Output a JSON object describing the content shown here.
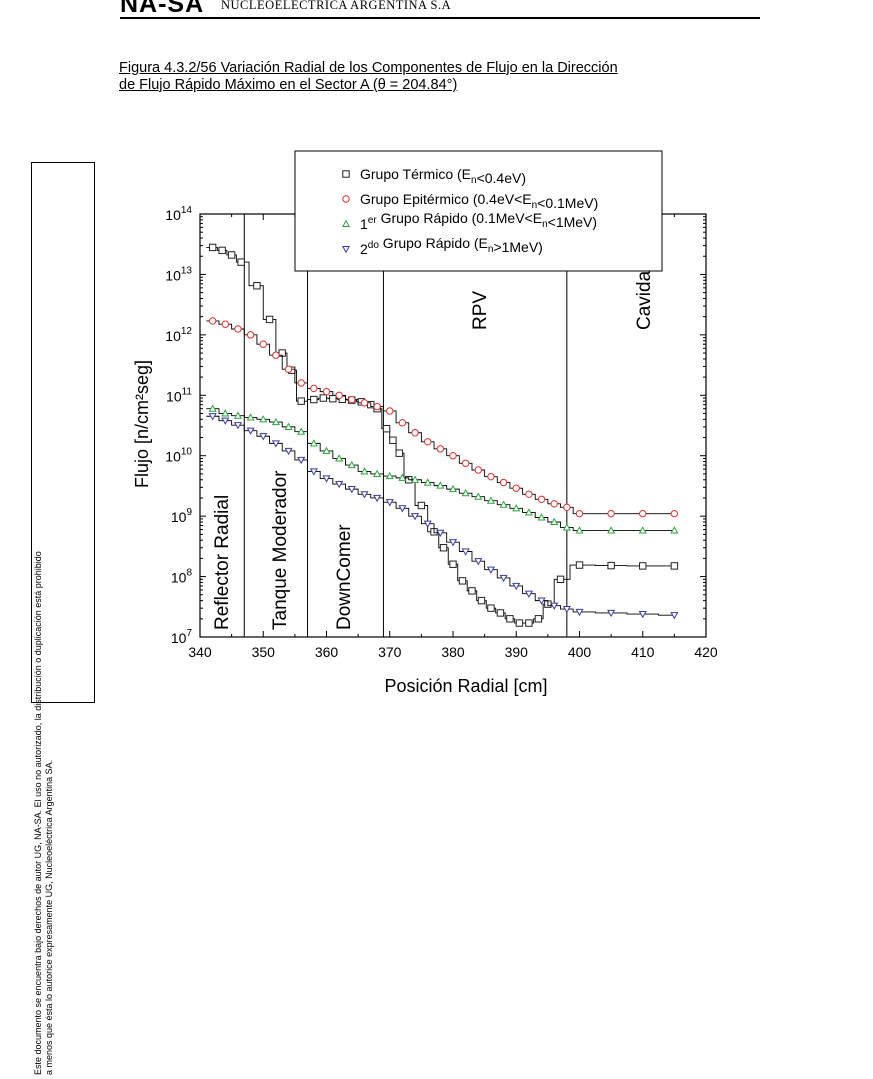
{
  "header": {
    "logo": "NA-SA",
    "company": "NUCLEOELÉCTRICA ARGENTINA S.A"
  },
  "caption": {
    "line1": "Figura 4.3.2/56 Variación Radial de los Componentes de Flujo en la Dirección",
    "line2": "de Flujo Rápido Máximo en el Sector A (θ = 204.84°)"
  },
  "side_note": "Este documento se encuentra bajo derechos de autor UG, NA-SA. El uso no autorizado, la distribución o duplicación está prohibido a menos que ésta lo autorice expresamente UG, Nucleoeléctrica Argentina SA.",
  "chart_data": {
    "type": "scatter",
    "xlabel": "Posición Radial [cm]",
    "ylabel": "Flujo [n/cm²seg]",
    "xlim": [
      340,
      420
    ],
    "ylim": [
      10000000.0,
      100000000000000.0
    ],
    "yscale": "log",
    "x_ticks": [
      "340",
      "350",
      "360",
      "370",
      "380",
      "390",
      "400",
      "410",
      "420"
    ],
    "y_ticks": [
      {
        "base": "10",
        "exp": "7"
      },
      {
        "base": "10",
        "exp": "8"
      },
      {
        "base": "10",
        "exp": "9"
      },
      {
        "base": "10",
        "exp": "10"
      },
      {
        "base": "10",
        "exp": "11"
      },
      {
        "base": "10",
        "exp": "12"
      },
      {
        "base": "10",
        "exp": "13"
      },
      {
        "base": "10",
        "exp": "14"
      }
    ],
    "boundaries": [
      347,
      357,
      369,
      398
    ],
    "region_labels": [
      "Reflector Radial",
      "Tanque Moderador",
      "DownComer",
      "RPV",
      "Cavidad"
    ],
    "legend_position": "top",
    "series": [
      {
        "name_parts": [
          "Grupo Térmico (E",
          "n",
          "<0.4eV)"
        ],
        "color": "#222222",
        "marker": "square",
        "x": [
          342,
          343.5,
          345,
          346.5,
          349,
          351,
          353,
          354.5,
          356,
          358,
          359.5,
          361,
          362.5,
          364,
          365.5,
          367,
          368,
          369.5,
          370.5,
          371.5,
          373,
          375,
          377,
          378.5,
          380,
          381.5,
          383,
          384.5,
          386,
          387.5,
          389,
          390.5,
          392,
          393.5,
          395,
          397,
          400,
          405,
          410,
          415
        ],
        "y": [
          28000000000000.0,
          25000000000000.0,
          21000000000000.0,
          16000000000000.0,
          6500000000000.0,
          1800000000000.0,
          500000000000.0,
          260000000000.0,
          80000000000.0,
          85000000000.0,
          90000000000.0,
          88000000000.0,
          86000000000.0,
          83000000000.0,
          78000000000.0,
          70000000000.0,
          60000000000.0,
          28000000000.0,
          18000000000.0,
          11000000000.0,
          4000000000.0,
          1500000000.0,
          550000000.0,
          300000000.0,
          160000000.0,
          85000000.0,
          58000000.0,
          40000000.0,
          30000000.0,
          25000000.0,
          20000000.0,
          17000000.0,
          17000000.0,
          20000000.0,
          35000000.0,
          90000000.0,
          155000000.0,
          152000000.0,
          150000000.0,
          150000000.0
        ]
      },
      {
        "name_parts": [
          "Grupo Epitérmico (0.4eV<E",
          "n",
          "<0.1MeV)"
        ],
        "color": "#e0302a",
        "marker": "circle",
        "x": [
          342,
          344,
          346,
          348,
          350,
          352,
          354,
          356,
          358,
          360,
          362,
          364,
          366,
          368,
          370,
          372,
          374,
          376,
          378,
          380,
          382,
          384,
          386,
          388,
          390,
          392,
          394,
          396,
          398,
          400,
          405,
          410,
          415
        ],
        "y": [
          1700000000000.0,
          1500000000000.0,
          1250000000000.0,
          1000000000000.0,
          700000000000.0,
          460000000000.0,
          270000000000.0,
          160000000000.0,
          130000000000.0,
          115000000000.0,
          100000000000.0,
          85000000000.0,
          75000000000.0,
          65000000000.0,
          55000000000.0,
          35000000000.0,
          24000000000.0,
          17000000000.0,
          13000000000.0,
          10000000000.0,
          7500000000.0,
          5800000000.0,
          4500000000.0,
          3600000000.0,
          2900000000.0,
          2300000000.0,
          1900000000.0,
          1600000000.0,
          1400000000.0,
          1100000000.0,
          1100000000.0,
          1100000000.0,
          1100000000.0
        ]
      },
      {
        "name_parts": [
          "1",
          "er",
          " Grupo Rápido (0.1MeV<E",
          "n",
          "<1MeV)"
        ],
        "color": "#2aa83a",
        "marker": "triangle-up",
        "x": [
          342,
          344,
          346,
          348,
          350,
          352,
          354,
          356,
          358,
          360,
          362,
          364,
          366,
          368,
          370,
          372,
          374,
          376,
          378,
          380,
          382,
          384,
          386,
          388,
          390,
          392,
          394,
          396,
          398,
          400,
          405,
          410,
          415
        ],
        "y": [
          60000000000.0,
          50000000000.0,
          46000000000.0,
          43000000000.0,
          40000000000.0,
          36000000000.0,
          30000000000.0,
          25000000000.0,
          16000000000.0,
          12000000000.0,
          9000000000.0,
          7000000000.0,
          5500000000.0,
          5000000000.0,
          4600000000.0,
          4300000000.0,
          4000000000.0,
          3600000000.0,
          3200000000.0,
          2800000000.0,
          2400000000.0,
          2100000000.0,
          1800000000.0,
          1550000000.0,
          1350000000.0,
          1150000000.0,
          950000000.0,
          800000000.0,
          650000000.0,
          580000000.0,
          580000000.0,
          580000000.0,
          580000000.0
        ]
      },
      {
        "name_parts": [
          "2",
          "do",
          " Grupo Rápido (E",
          "n",
          ">1MeV)"
        ],
        "color": "#3a3aa8",
        "marker": "triangle-down",
        "x": [
          342,
          344,
          346,
          348,
          350,
          352,
          354,
          356,
          358,
          360,
          362,
          364,
          366,
          368,
          370,
          372,
          374,
          376,
          378,
          380,
          382,
          384,
          386,
          388,
          390,
          392,
          394,
          396,
          398,
          400,
          405,
          410,
          415
        ],
        "y": [
          45000000000.0,
          38000000000.0,
          32000000000.0,
          26000000000.0,
          21000000000.0,
          16000000000.0,
          12000000000.0,
          8500000000.0,
          5500000000.0,
          4200000000.0,
          3400000000.0,
          2800000000.0,
          2300000000.0,
          2000000000.0,
          1700000000.0,
          1350000000.0,
          1000000000.0,
          750000000.0,
          530000000.0,
          370000000.0,
          260000000.0,
          180000000.0,
          130000000.0,
          95000000.0,
          70000000.0,
          52000000.0,
          40000000.0,
          33000000.0,
          29000000.0,
          26000000.0,
          25000000.0,
          24000000.0,
          23000000.0
        ]
      }
    ]
  }
}
